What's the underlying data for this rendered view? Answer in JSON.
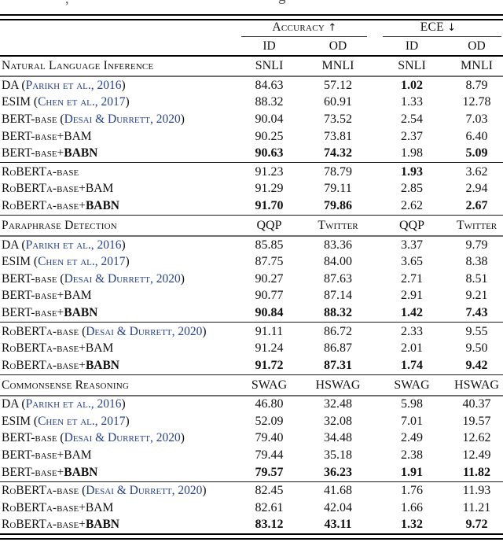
{
  "caption_fragments": {
    "left": ",",
    "mid": "g"
  },
  "colors": {
    "citation": "#26418C",
    "rule_black": "#000000",
    "rule_gray": "#6f6f6f"
  },
  "header": {
    "group_accuracy": "Accuracy",
    "arrow_up": "↑",
    "group_ece": "ECE",
    "arrow_down": "↓",
    "subcols": [
      "ID",
      "OD",
      "ID",
      "OD"
    ]
  },
  "sections": [
    {
      "title": "Natural Language Inference",
      "datasets": [
        "SNLI",
        "MNLI",
        "SNLI",
        "MNLI"
      ],
      "blocks": [
        {
          "rows": [
            {
              "name": "DA",
              "cite": "Parikh et al., 2016",
              "values": [
                "84.63",
                "57.12",
                "1.02",
                "8.79"
              ],
              "bold_values": [
                false,
                false,
                true,
                false
              ]
            },
            {
              "name": "ESIM",
              "cite": "Chen et al., 2017",
              "values": [
                "88.32",
                "60.91",
                "1.33",
                "12.78"
              ],
              "bold_values": [
                false,
                false,
                false,
                false
              ]
            },
            {
              "name": "BERT-base",
              "cite": "Desai & Durrett, 2020",
              "values": [
                "90.04",
                "73.52",
                "2.54",
                "7.03"
              ],
              "bold_values": [
                false,
                false,
                false,
                false
              ]
            },
            {
              "name": "BERT-base+BAM",
              "values": [
                "90.25",
                "73.81",
                "2.37",
                "6.40"
              ],
              "bold_values": [
                false,
                false,
                false,
                false
              ]
            },
            {
              "name": "BERT-base+",
              "name_bold": "BABN",
              "values": [
                "90.63",
                "74.32",
                "1.98",
                "5.09"
              ],
              "bold_values": [
                true,
                true,
                false,
                true
              ]
            }
          ]
        },
        {
          "rows": [
            {
              "name": "RoBERTa-base",
              "values": [
                "91.23",
                "78.79",
                "1.93",
                "3.62"
              ],
              "bold_values": [
                false,
                false,
                true,
                false
              ]
            },
            {
              "name": "RoBERTa-base+BAM",
              "values": [
                "91.29",
                "79.11",
                "2.85",
                "2.94"
              ],
              "bold_values": [
                false,
                false,
                false,
                false
              ]
            },
            {
              "name": "RoBERTa-base+",
              "name_bold": "BABN",
              "values": [
                "91.70",
                "79.86",
                "2.62",
                "2.67"
              ],
              "bold_values": [
                true,
                true,
                false,
                true
              ]
            }
          ]
        }
      ]
    },
    {
      "title": "Paraphrase Detection",
      "datasets": [
        "QQP",
        "Twitter",
        "QQP",
        "Twitter"
      ],
      "blocks": [
        {
          "rows": [
            {
              "name": "DA",
              "cite": "Parikh et al., 2016",
              "values": [
                "85.85",
                "83.36",
                "3.37",
                "9.79"
              ],
              "bold_values": [
                false,
                false,
                false,
                false
              ]
            },
            {
              "name": "ESIM",
              "cite": "Chen et al., 2017",
              "values": [
                "87.75",
                "84.00",
                "3.65",
                "8.38"
              ],
              "bold_values": [
                false,
                false,
                false,
                false
              ]
            },
            {
              "name": "BERT-base",
              "cite": "Desai & Durrett, 2020",
              "values": [
                "90.27",
                "87.63",
                "2.71",
                "8.51"
              ],
              "bold_values": [
                false,
                false,
                false,
                false
              ]
            },
            {
              "name": "BERT-base+BAM",
              "values": [
                "90.77",
                "87.14",
                "2.91",
                "9.21"
              ],
              "bold_values": [
                false,
                false,
                false,
                false
              ]
            },
            {
              "name": "BERT-base+",
              "name_bold": "BABN",
              "values": [
                "90.84",
                "88.32",
                "1.42",
                "7.43"
              ],
              "bold_values": [
                true,
                true,
                true,
                true
              ]
            }
          ]
        },
        {
          "rows": [
            {
              "name": "RoBERTa-base",
              "cite": "Desai & Durrett, 2020",
              "values": [
                "91.11",
                "86.72",
                "2.33",
                "9.55"
              ],
              "bold_values": [
                false,
                false,
                false,
                false
              ]
            },
            {
              "name": "RoBERTa-base+BAM",
              "values": [
                "91.24",
                "86.87",
                "2.01",
                "9.50"
              ],
              "bold_values": [
                false,
                false,
                false,
                false
              ]
            },
            {
              "name": "RoBERTa-base+",
              "name_bold": "BABN",
              "values": [
                "91.72",
                "87.31",
                "1.74",
                "9.42"
              ],
              "bold_values": [
                true,
                true,
                true,
                true
              ]
            }
          ]
        }
      ]
    },
    {
      "title": "Commonsense Reasoning",
      "datasets": [
        "SWAG",
        "HSWAG",
        "SWAG",
        "HSWAG"
      ],
      "blocks": [
        {
          "rows": [
            {
              "name": "DA",
              "cite": "Parikh et al., 2016",
              "values": [
                "46.80",
                "32.48",
                "5.98",
                "40.37"
              ],
              "bold_values": [
                false,
                false,
                false,
                false
              ]
            },
            {
              "name": "ESIM",
              "cite": "Chen et al., 2017",
              "values": [
                "52.09",
                "32.08",
                "7.01",
                "19.57"
              ],
              "bold_values": [
                false,
                false,
                false,
                false
              ]
            },
            {
              "name": "BERT-base",
              "cite": "Desai & Durrett, 2020",
              "values": [
                "79.40",
                "34.48",
                "2.49",
                "12.62"
              ],
              "bold_values": [
                false,
                false,
                false,
                false
              ]
            },
            {
              "name": "BERT-base+BAM",
              "values": [
                "79.44",
                "35.18",
                "2.38",
                "12.49"
              ],
              "bold_values": [
                false,
                false,
                false,
                false
              ]
            },
            {
              "name": "BERT-base+",
              "name_bold": "BABN",
              "values": [
                "79.57",
                "36.23",
                "1.91",
                "11.82"
              ],
              "bold_values": [
                true,
                true,
                true,
                true
              ]
            }
          ]
        },
        {
          "rows": [
            {
              "name": "RoBERTa-base",
              "cite": "Desai & Durrett, 2020",
              "values": [
                "82.45",
                "41.68",
                "1.76",
                "11.93"
              ],
              "bold_values": [
                false,
                false,
                false,
                false
              ]
            },
            {
              "name": "RoBERTa-base+BAM",
              "values": [
                "82.61",
                "42.04",
                "1.66",
                "11.21"
              ],
              "bold_values": [
                false,
                false,
                false,
                false
              ]
            },
            {
              "name": "RoBERTa-base+",
              "name_bold": "BABN",
              "values": [
                "83.12",
                "43.11",
                "1.32",
                "9.72"
              ],
              "bold_values": [
                true,
                true,
                true,
                true
              ]
            }
          ]
        }
      ]
    }
  ]
}
